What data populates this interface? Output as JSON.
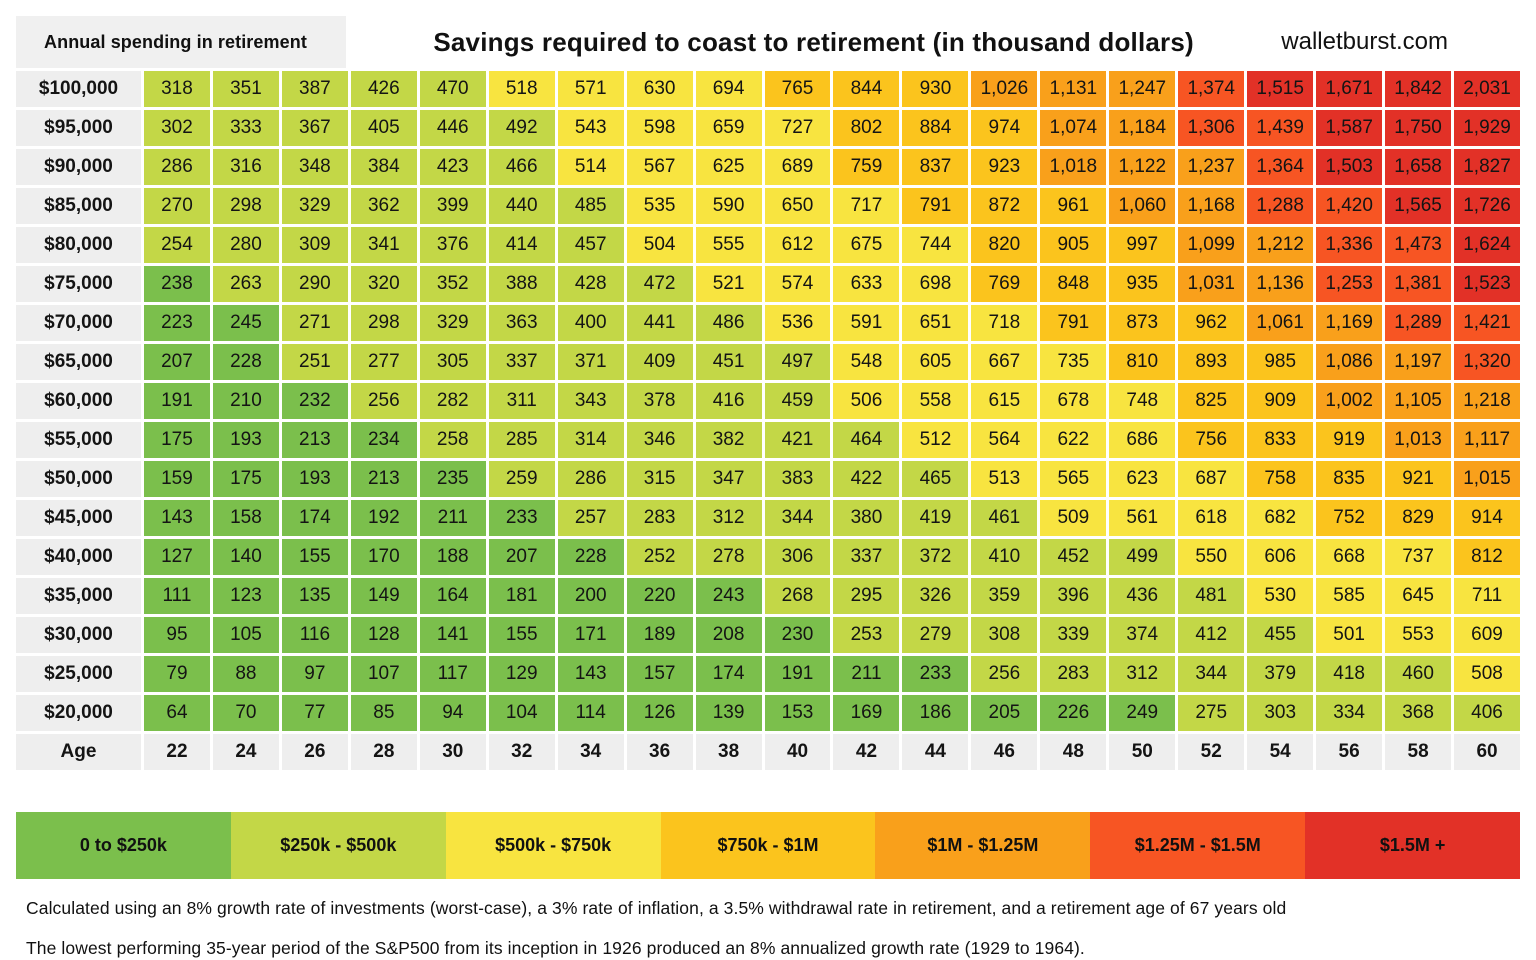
{
  "header": {
    "corner_label": "Annual spending in retirement",
    "title": "Savings required to coast to retirement (in thousand dollars)",
    "site": "walletburst.com"
  },
  "chart_data": {
    "type": "heatmap",
    "title": "Savings required to coast to retirement (in thousand dollars)",
    "unit": "thousand dollars",
    "x_label": "Age",
    "x": [
      22,
      24,
      26,
      28,
      30,
      32,
      34,
      36,
      38,
      40,
      42,
      44,
      46,
      48,
      50,
      52,
      54,
      56,
      58,
      60
    ],
    "y_label": "Annual spending in retirement",
    "rows": [
      {
        "spending": "$100,000",
        "values": [
          318,
          351,
          387,
          426,
          470,
          518,
          571,
          630,
          694,
          765,
          844,
          930,
          1026,
          1131,
          1247,
          1374,
          1515,
          1671,
          1842,
          2031
        ]
      },
      {
        "spending": "$95,000",
        "values": [
          302,
          333,
          367,
          405,
          446,
          492,
          543,
          598,
          659,
          727,
          802,
          884,
          974,
          1074,
          1184,
          1306,
          1439,
          1587,
          1750,
          1929
        ]
      },
      {
        "spending": "$90,000",
        "values": [
          286,
          316,
          348,
          384,
          423,
          466,
          514,
          567,
          625,
          689,
          759,
          837,
          923,
          1018,
          1122,
          1237,
          1364,
          1503,
          1658,
          1827
        ]
      },
      {
        "spending": "$85,000",
        "values": [
          270,
          298,
          329,
          362,
          399,
          440,
          485,
          535,
          590,
          650,
          717,
          791,
          872,
          961,
          1060,
          1168,
          1288,
          1420,
          1565,
          1726
        ]
      },
      {
        "spending": "$80,000",
        "values": [
          254,
          280,
          309,
          341,
          376,
          414,
          457,
          504,
          555,
          612,
          675,
          744,
          820,
          905,
          997,
          1099,
          1212,
          1336,
          1473,
          1624
        ]
      },
      {
        "spending": "$75,000",
        "values": [
          238,
          263,
          290,
          320,
          352,
          388,
          428,
          472,
          521,
          574,
          633,
          698,
          769,
          848,
          935,
          1031,
          1136,
          1253,
          1381,
          1523
        ]
      },
      {
        "spending": "$70,000",
        "values": [
          223,
          245,
          271,
          298,
          329,
          363,
          400,
          441,
          486,
          536,
          591,
          651,
          718,
          791,
          873,
          962,
          1061,
          1169,
          1289,
          1421
        ]
      },
      {
        "spending": "$65,000",
        "values": [
          207,
          228,
          251,
          277,
          305,
          337,
          371,
          409,
          451,
          497,
          548,
          605,
          667,
          735,
          810,
          893,
          985,
          1086,
          1197,
          1320
        ]
      },
      {
        "spending": "$60,000",
        "values": [
          191,
          210,
          232,
          256,
          282,
          311,
          343,
          378,
          416,
          459,
          506,
          558,
          615,
          678,
          748,
          825,
          909,
          1002,
          1105,
          1218
        ]
      },
      {
        "spending": "$55,000",
        "values": [
          175,
          193,
          213,
          234,
          258,
          285,
          314,
          346,
          382,
          421,
          464,
          512,
          564,
          622,
          686,
          756,
          833,
          919,
          1013,
          1117
        ]
      },
      {
        "spending": "$50,000",
        "values": [
          159,
          175,
          193,
          213,
          235,
          259,
          286,
          315,
          347,
          383,
          422,
          465,
          513,
          565,
          623,
          687,
          758,
          835,
          921,
          1015
        ]
      },
      {
        "spending": "$45,000",
        "values": [
          143,
          158,
          174,
          192,
          211,
          233,
          257,
          283,
          312,
          344,
          380,
          419,
          461,
          509,
          561,
          618,
          682,
          752,
          829,
          914
        ]
      },
      {
        "spending": "$40,000",
        "values": [
          127,
          140,
          155,
          170,
          188,
          207,
          228,
          252,
          278,
          306,
          337,
          372,
          410,
          452,
          499,
          550,
          606,
          668,
          737,
          812
        ]
      },
      {
        "spending": "$35,000",
        "values": [
          111,
          123,
          135,
          149,
          164,
          181,
          200,
          220,
          243,
          268,
          295,
          326,
          359,
          396,
          436,
          481,
          530,
          585,
          645,
          711
        ]
      },
      {
        "spending": "$30,000",
        "values": [
          95,
          105,
          116,
          128,
          141,
          155,
          171,
          189,
          208,
          230,
          253,
          279,
          308,
          339,
          374,
          412,
          455,
          501,
          553,
          609
        ]
      },
      {
        "spending": "$25,000",
        "values": [
          79,
          88,
          97,
          107,
          117,
          129,
          143,
          157,
          174,
          191,
          211,
          233,
          256,
          283,
          312,
          344,
          379,
          418,
          460,
          508
        ]
      },
      {
        "spending": "$20,000",
        "values": [
          64,
          70,
          77,
          85,
          94,
          104,
          114,
          126,
          139,
          153,
          169,
          186,
          205,
          226,
          249,
          275,
          303,
          334,
          368,
          406
        ]
      }
    ],
    "legend": [
      {
        "label": "0 to $250k",
        "color": "#7BBF4C",
        "max": 250
      },
      {
        "label": "$250k - $500k",
        "color": "#C3D747",
        "max": 500
      },
      {
        "label": "$500k - $750k",
        "color": "#F8E440",
        "max": 750
      },
      {
        "label": "$750k - $1M",
        "color": "#FBC41D",
        "max": 1000
      },
      {
        "label": "$1M - $1.25M",
        "color": "#F9A01B",
        "max": 1250
      },
      {
        "label": "$1.25M - $1.5M",
        "color": "#F75523",
        "max": 1500
      },
      {
        "label": "$1.5M +",
        "color": "#E23127",
        "max": null
      }
    ],
    "legend_position": "bottom",
    "grid": false
  },
  "footnotes": [
    "Calculated using an 8% growth rate of investments (worst-case), a 3% rate of inflation, a 3.5% withdrawal rate in retirement, and a retirement age of 67 years old",
    "The lowest performing 35-year period of the S&P500 from its inception in 1926 produced an 8% annualized growth rate (1929 to 1964)."
  ]
}
